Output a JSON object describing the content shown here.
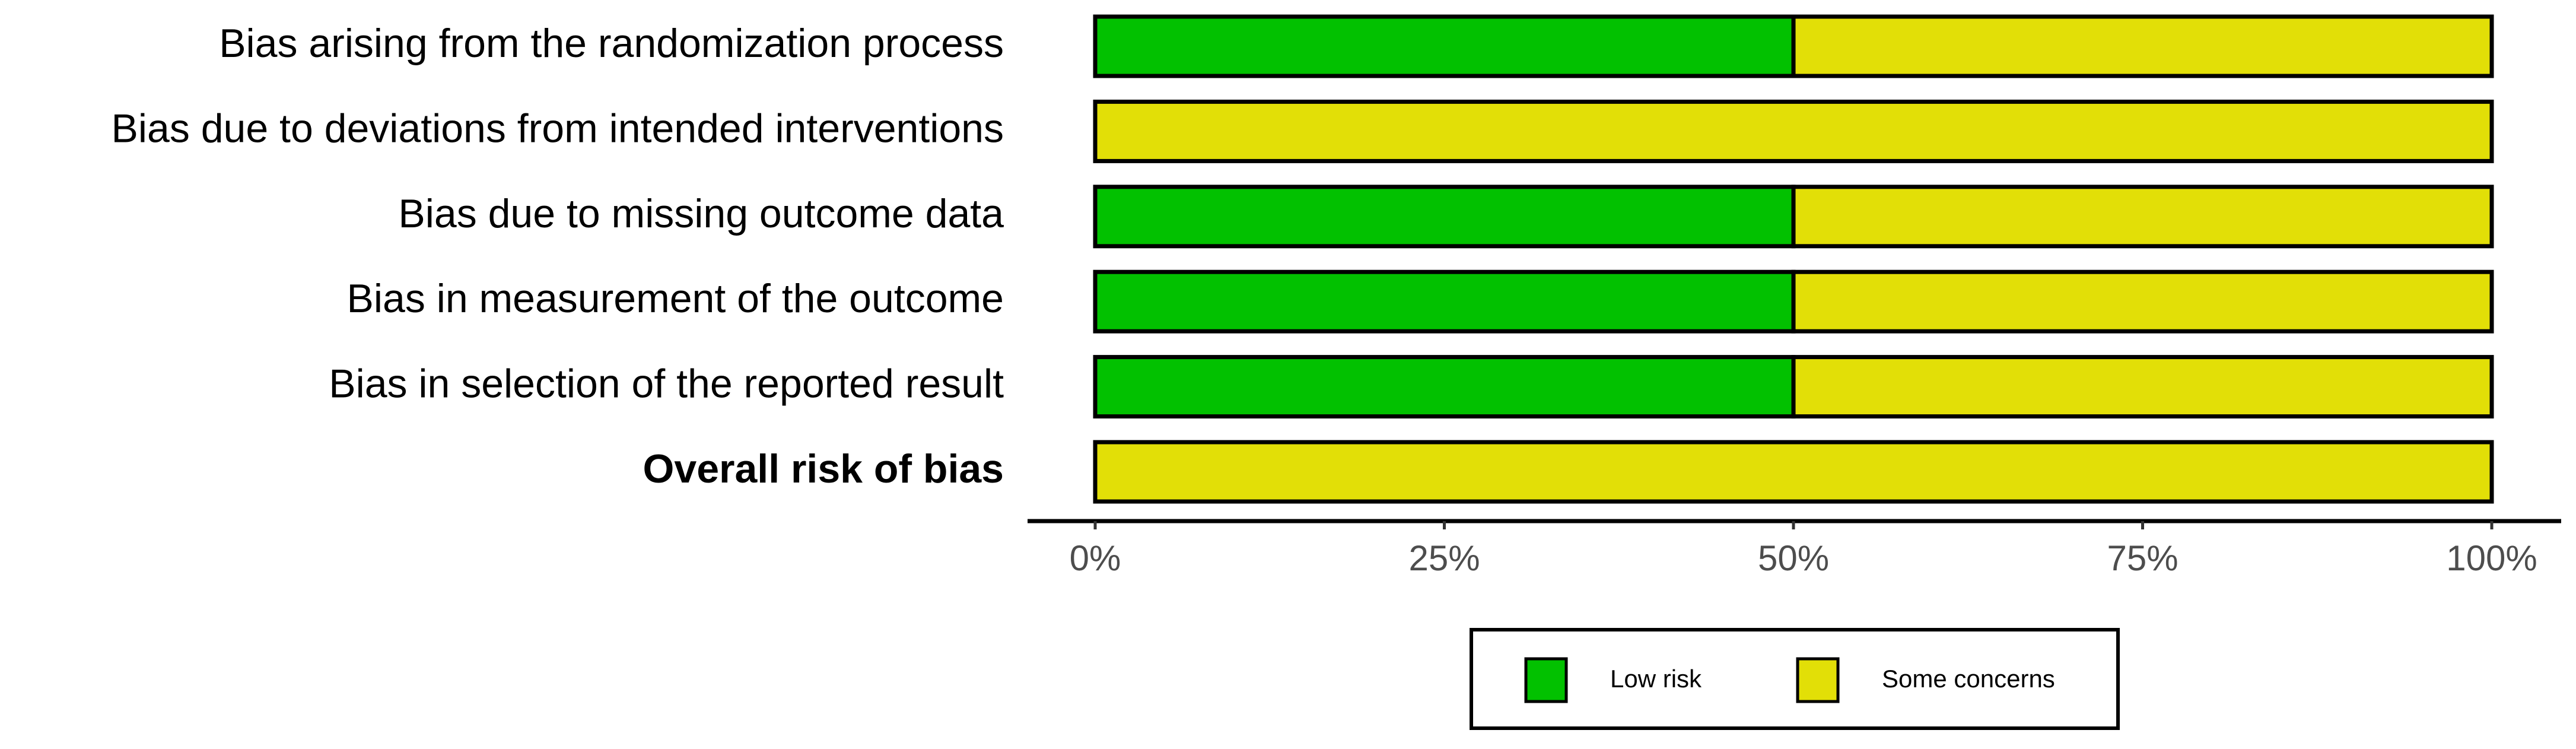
{
  "chart_data": {
    "type": "stacked-bar",
    "orientation": "horizontal",
    "categories": [
      "Bias arising from the randomization process",
      "Bias due to deviations from intended interventions",
      "Bias due to missing outcome data",
      "Bias in measurement of the outcome",
      "Bias in selection of the reported result",
      "Overall risk of bias"
    ],
    "series": [
      {
        "name": "Low risk",
        "color": "#02c100",
        "values": [
          50,
          0,
          50,
          50,
          50,
          0
        ]
      },
      {
        "name": "Some concerns",
        "color": "#e2df07",
        "values": [
          50,
          100,
          50,
          50,
          50,
          100
        ]
      }
    ],
    "xlim": [
      0,
      100
    ],
    "xticks": [
      {
        "value": 0,
        "label": "0%"
      },
      {
        "value": 25,
        "label": "25%"
      },
      {
        "value": 50,
        "label": "50%"
      },
      {
        "value": 75,
        "label": "75%"
      },
      {
        "value": 100,
        "label": "100%"
      }
    ],
    "legend": "bottom"
  }
}
